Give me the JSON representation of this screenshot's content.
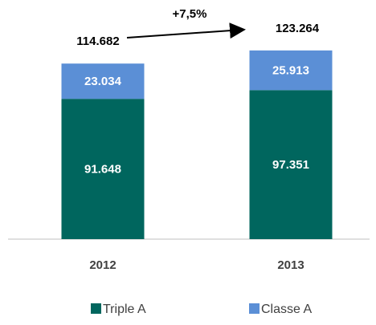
{
  "chart_data": {
    "type": "stacked-bar",
    "categories": [
      "2012",
      "2013"
    ],
    "series": [
      {
        "name": "Triple A",
        "color": "#00665e",
        "values": [
          91648,
          97351
        ],
        "value_labels": [
          "91.648",
          "97.351"
        ]
      },
      {
        "name": "Classe A",
        "color": "#5b8fd6",
        "values": [
          23034,
          25913
        ],
        "value_labels": [
          "23.034",
          "25.913"
        ]
      }
    ],
    "totals": {
      "values": [
        114682,
        123264
      ],
      "value_labels": [
        "114.682",
        "123.264"
      ]
    },
    "annotation": "+7,5%",
    "ylim": [
      0,
      130000
    ],
    "legend": "bottom"
  }
}
